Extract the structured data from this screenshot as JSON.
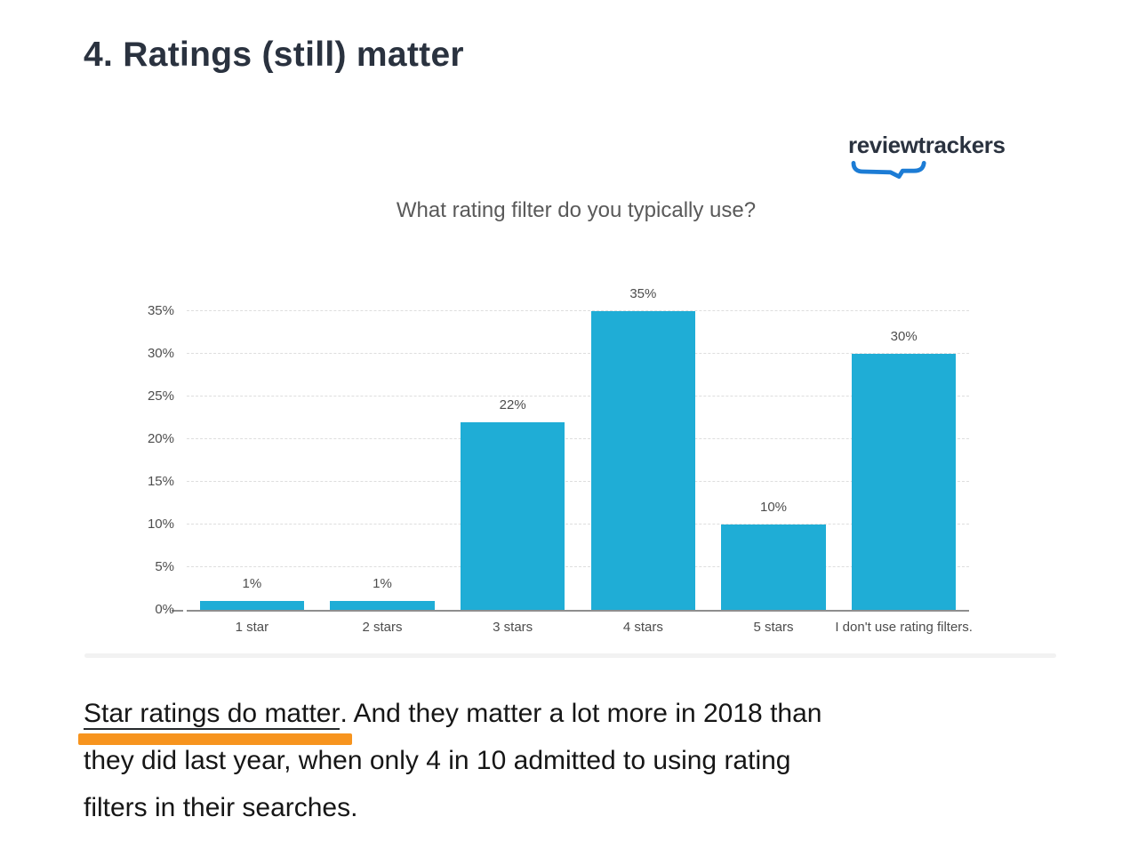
{
  "heading": "4. Ratings (still) matter",
  "logo": {
    "name": "reviewtrackers",
    "text_color": "#2a323f",
    "mark_color": "#1c7cd5"
  },
  "chart_data": {
    "type": "bar",
    "title": "What rating filter do you typically use?",
    "categories": [
      "1 star",
      "2 stars",
      "3 stars",
      "4 stars",
      "5 stars",
      "I don't use rating filters."
    ],
    "values": [
      1,
      1,
      22,
      35,
      10,
      30
    ],
    "data_labels": [
      "1%",
      "1%",
      "22%",
      "35%",
      "10%",
      "30%"
    ],
    "y_tick_labels": [
      "0%",
      "5%",
      "10%",
      "15%",
      "20%",
      "25%",
      "30%",
      "35%"
    ],
    "ylim": [
      0,
      35
    ],
    "grid": "horizontal dotted lines every 5%",
    "legend": "none",
    "bar_color": "#1fadd6",
    "axis_text_color": "#4d4d4d",
    "xlabel": "",
    "ylabel": ""
  },
  "paragraph": {
    "highlight_text": "Star ratings do matter",
    "after_highlight": ". And they matter a lot more in 2018 than",
    "line2": "they did last year, when only 4 in 10 admitted to using rating",
    "line3": "filters in their searches.",
    "full_text": "Star ratings do matter. And they matter a lot more in 2018 than they did last year, when only 4 in 10 admitted to using rating filters in their searches.",
    "highlight_bar_color": "#F7941E"
  }
}
